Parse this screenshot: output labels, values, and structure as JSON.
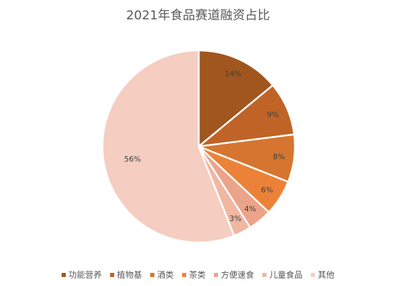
{
  "chart_data": {
    "type": "pie",
    "title": "2021年食品赛道融资占比",
    "categories": [
      "功能营养",
      "植物基",
      "酒类",
      "茶类",
      "方便速食",
      "儿童食品",
      "其他"
    ],
    "values": [
      14,
      9,
      8,
      6,
      4,
      3,
      56
    ],
    "labels": [
      "14%",
      "9%",
      "8%",
      "6%",
      "4%",
      "3%",
      "56%"
    ],
    "colors": [
      "#A0561E",
      "#BF6426",
      "#D6752F",
      "#EC8238",
      "#EBA48A",
      "#F0B7A2",
      "#F5CDC1"
    ],
    "legend_position": "bottom"
  }
}
